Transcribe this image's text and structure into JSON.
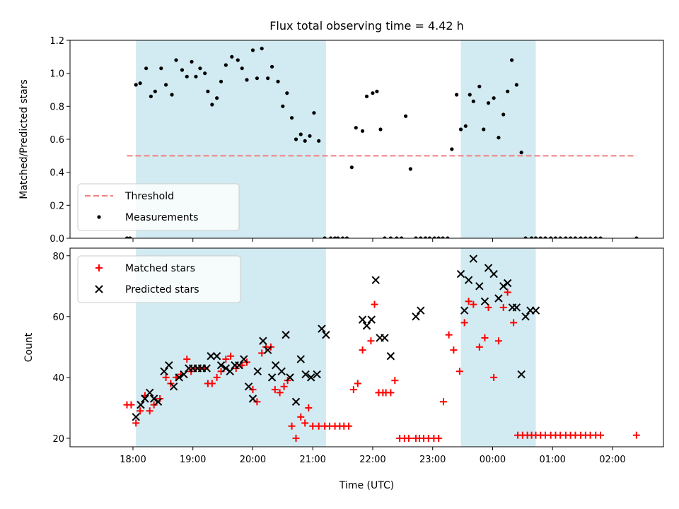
{
  "chart_data": {
    "type": "scatter",
    "title": "Flux total observing time = 4.42 h",
    "xlabel": "Time (UTC)",
    "x_ticks": [
      "18:00",
      "19:00",
      "20:00",
      "21:00",
      "22:00",
      "23:00",
      "00:00",
      "01:00",
      "02:00"
    ],
    "x_range_hours": [
      16.95,
      26.85
    ],
    "shaded_intervals_hours": [
      [
        18.05,
        21.22
      ],
      [
        23.47,
        24.72
      ]
    ],
    "shade_color": "#add8e6",
    "panels": [
      {
        "ylabel": "Matched/Predicted stars",
        "ylim": [
          0,
          1.2
        ],
        "y_ticks": [
          0.0,
          0.2,
          0.4,
          0.6,
          0.8,
          1.0,
          1.2
        ],
        "threshold": {
          "name": "Threshold",
          "value": 0.5,
          "x_range_hours": [
            17.9,
            26.4
          ],
          "color": "#f08080"
        },
        "legend_position": "lower-left",
        "legend": [
          "Threshold",
          "Measurements"
        ],
        "series": [
          {
            "name": "Measurements",
            "marker": "dot",
            "color": "#000000",
            "x": [
              17.9,
              17.95,
              18.05,
              18.12,
              18.22,
              18.3,
              18.37,
              18.47,
              18.55,
              18.65,
              18.72,
              18.82,
              18.9,
              18.98,
              19.05,
              19.12,
              19.2,
              19.25,
              19.32,
              19.4,
              19.47,
              19.55,
              19.65,
              19.75,
              19.82,
              19.9,
              20.0,
              20.07,
              20.15,
              20.25,
              20.32,
              20.42,
              20.5,
              20.57,
              20.65,
              20.72,
              20.8,
              20.87,
              20.95,
              21.02,
              21.1,
              21.2,
              21.3,
              21.37,
              21.42,
              21.5,
              21.57,
              21.65,
              21.72,
              21.83,
              21.9,
              22.0,
              22.07,
              22.13,
              22.2,
              22.3,
              22.4,
              22.48,
              22.55,
              22.63,
              22.72,
              22.8,
              22.88,
              22.95,
              23.03,
              23.1,
              23.17,
              23.25,
              23.32,
              23.4,
              23.47,
              23.55,
              23.62,
              23.68,
              23.78,
              23.85,
              23.93,
              24.02,
              24.1,
              24.18,
              24.25,
              24.32,
              24.4,
              24.48,
              24.55,
              24.65,
              24.72,
              24.8,
              24.88,
              24.97,
              25.05,
              25.13,
              25.22,
              25.3,
              25.38,
              25.47,
              25.55,
              25.63,
              25.72,
              25.8,
              26.4
            ],
            "y": [
              0,
              0,
              0.93,
              0.94,
              1.03,
              0.86,
              0.89,
              1.03,
              0.93,
              0.87,
              1.08,
              1.02,
              0.98,
              1.07,
              0.98,
              1.03,
              1.0,
              0.89,
              0.81,
              0.85,
              0.95,
              1.05,
              1.1,
              1.08,
              1.03,
              0.96,
              1.14,
              0.97,
              1.15,
              0.97,
              1.04,
              0.95,
              0.8,
              0.88,
              0.73,
              0.6,
              0.63,
              0.59,
              0.62,
              0.76,
              0.59,
              0,
              0,
              0,
              0,
              0,
              0,
              0.43,
              0.67,
              0.65,
              0.86,
              0.88,
              0.89,
              0.66,
              0,
              0,
              0,
              0,
              0.74,
              0.42,
              0,
              0,
              0,
              0,
              0,
              0,
              0,
              0,
              0.54,
              0.87,
              0.66,
              0.68,
              0.87,
              0.83,
              0.92,
              0.66,
              0.82,
              0.85,
              0.61,
              0.75,
              0.89,
              1.08,
              0.93,
              0.52,
              0,
              0,
              0,
              0,
              0,
              0,
              0,
              0,
              0,
              0,
              0,
              0,
              0,
              0,
              0,
              0,
              0
            ]
          }
        ]
      },
      {
        "ylabel": "Count",
        "ylim": [
          17.2,
          82.5
        ],
        "y_ticks": [
          20,
          40,
          60,
          80
        ],
        "legend_position": "top-left",
        "legend": [
          "Matched stars",
          "Predicted stars"
        ],
        "series": [
          {
            "name": "Matched stars",
            "marker": "plus",
            "color": "#ff0000",
            "x": [
              17.9,
              17.97,
              18.05,
              18.12,
              18.2,
              18.28,
              18.35,
              18.45,
              18.55,
              18.63,
              18.72,
              18.8,
              18.9,
              18.97,
              19.05,
              19.12,
              19.2,
              19.25,
              19.32,
              19.4,
              19.47,
              19.55,
              19.63,
              19.72,
              19.82,
              19.9,
              20.0,
              20.07,
              20.15,
              20.22,
              20.3,
              20.37,
              20.45,
              20.52,
              20.58,
              20.65,
              20.72,
              20.8,
              20.87,
              20.93,
              21.0,
              21.1,
              21.2,
              21.28,
              21.37,
              21.45,
              21.52,
              21.6,
              21.68,
              21.75,
              21.83,
              21.97,
              22.03,
              22.1,
              22.17,
              22.22,
              22.3,
              22.37,
              22.45,
              22.53,
              22.6,
              22.72,
              22.78,
              22.85,
              22.93,
              23.02,
              23.1,
              23.18,
              23.27,
              23.35,
              23.45,
              23.53,
              23.6,
              23.68,
              23.78,
              23.87,
              23.93,
              24.02,
              24.1,
              24.18,
              24.25,
              24.35,
              24.42,
              24.5,
              24.58,
              24.65,
              24.72,
              24.8,
              24.88,
              24.97,
              25.05,
              25.13,
              25.22,
              25.3,
              25.38,
              25.47,
              25.55,
              25.63,
              25.72,
              25.8,
              26.4
            ],
            "y": [
              31,
              31,
              25,
              29,
              34,
              29,
              31,
              33,
              40,
              38,
              40,
              41,
              46,
              42,
              43,
              43,
              43,
              38,
              38,
              40,
              42,
              46,
              47,
              43,
              44,
              45,
              36,
              32,
              48,
              50,
              50,
              36,
              35,
              37,
              39,
              24,
              20,
              27,
              25,
              30,
              24,
              24,
              24,
              24,
              24,
              24,
              24,
              24,
              36,
              38,
              49,
              52,
              64,
              35,
              35,
              35,
              35,
              39,
              20,
              20,
              20,
              20,
              20,
              20,
              20,
              20,
              20,
              32,
              54,
              49,
              42,
              58,
              65,
              64,
              50,
              53,
              63,
              40,
              52,
              63,
              68,
              58,
              21,
              21,
              21,
              21,
              21,
              21,
              21,
              21,
              21,
              21,
              21,
              21,
              21,
              21,
              21,
              21,
              21,
              21,
              21
            ]
          },
          {
            "name": "Predicted stars",
            "marker": "x",
            "color": "#000000",
            "x": [
              18.05,
              18.13,
              18.2,
              18.28,
              18.35,
              18.42,
              18.52,
              18.6,
              18.68,
              18.77,
              18.85,
              18.93,
              19.0,
              19.08,
              19.15,
              19.23,
              19.3,
              19.4,
              19.47,
              19.55,
              19.62,
              19.7,
              19.77,
              19.85,
              19.93,
              20.0,
              20.08,
              20.17,
              20.25,
              20.32,
              20.38,
              20.48,
              20.55,
              20.62,
              20.72,
              20.8,
              20.88,
              20.97,
              21.07,
              21.15,
              21.22,
              21.83,
              21.9,
              21.98,
              22.05,
              22.12,
              22.2,
              22.3,
              22.72,
              22.8,
              23.47,
              23.53,
              23.6,
              23.68,
              23.78,
              23.87,
              23.93,
              24.02,
              24.1,
              24.18,
              24.25,
              24.33,
              24.4,
              24.48,
              24.55,
              24.63,
              24.72
            ],
            "y": [
              27,
              31,
              33,
              35,
              33,
              32,
              42,
              44,
              37,
              40,
              41,
              43,
              43,
              43,
              43,
              43,
              47,
              47,
              44,
              43,
              42,
              44,
              44,
              46,
              37,
              33,
              42,
              52,
              49,
              40,
              44,
              42,
              54,
              40,
              32,
              46,
              41,
              40,
              41,
              56,
              54,
              59,
              57,
              59,
              72,
              53,
              53,
              47,
              60,
              62,
              74,
              62,
              72,
              79,
              70,
              65,
              76,
              74,
              66,
              70,
              71,
              63,
              63,
              41,
              60,
              62,
              62
            ],
            "x_dup_note": ""
          }
        ]
      }
    ]
  }
}
